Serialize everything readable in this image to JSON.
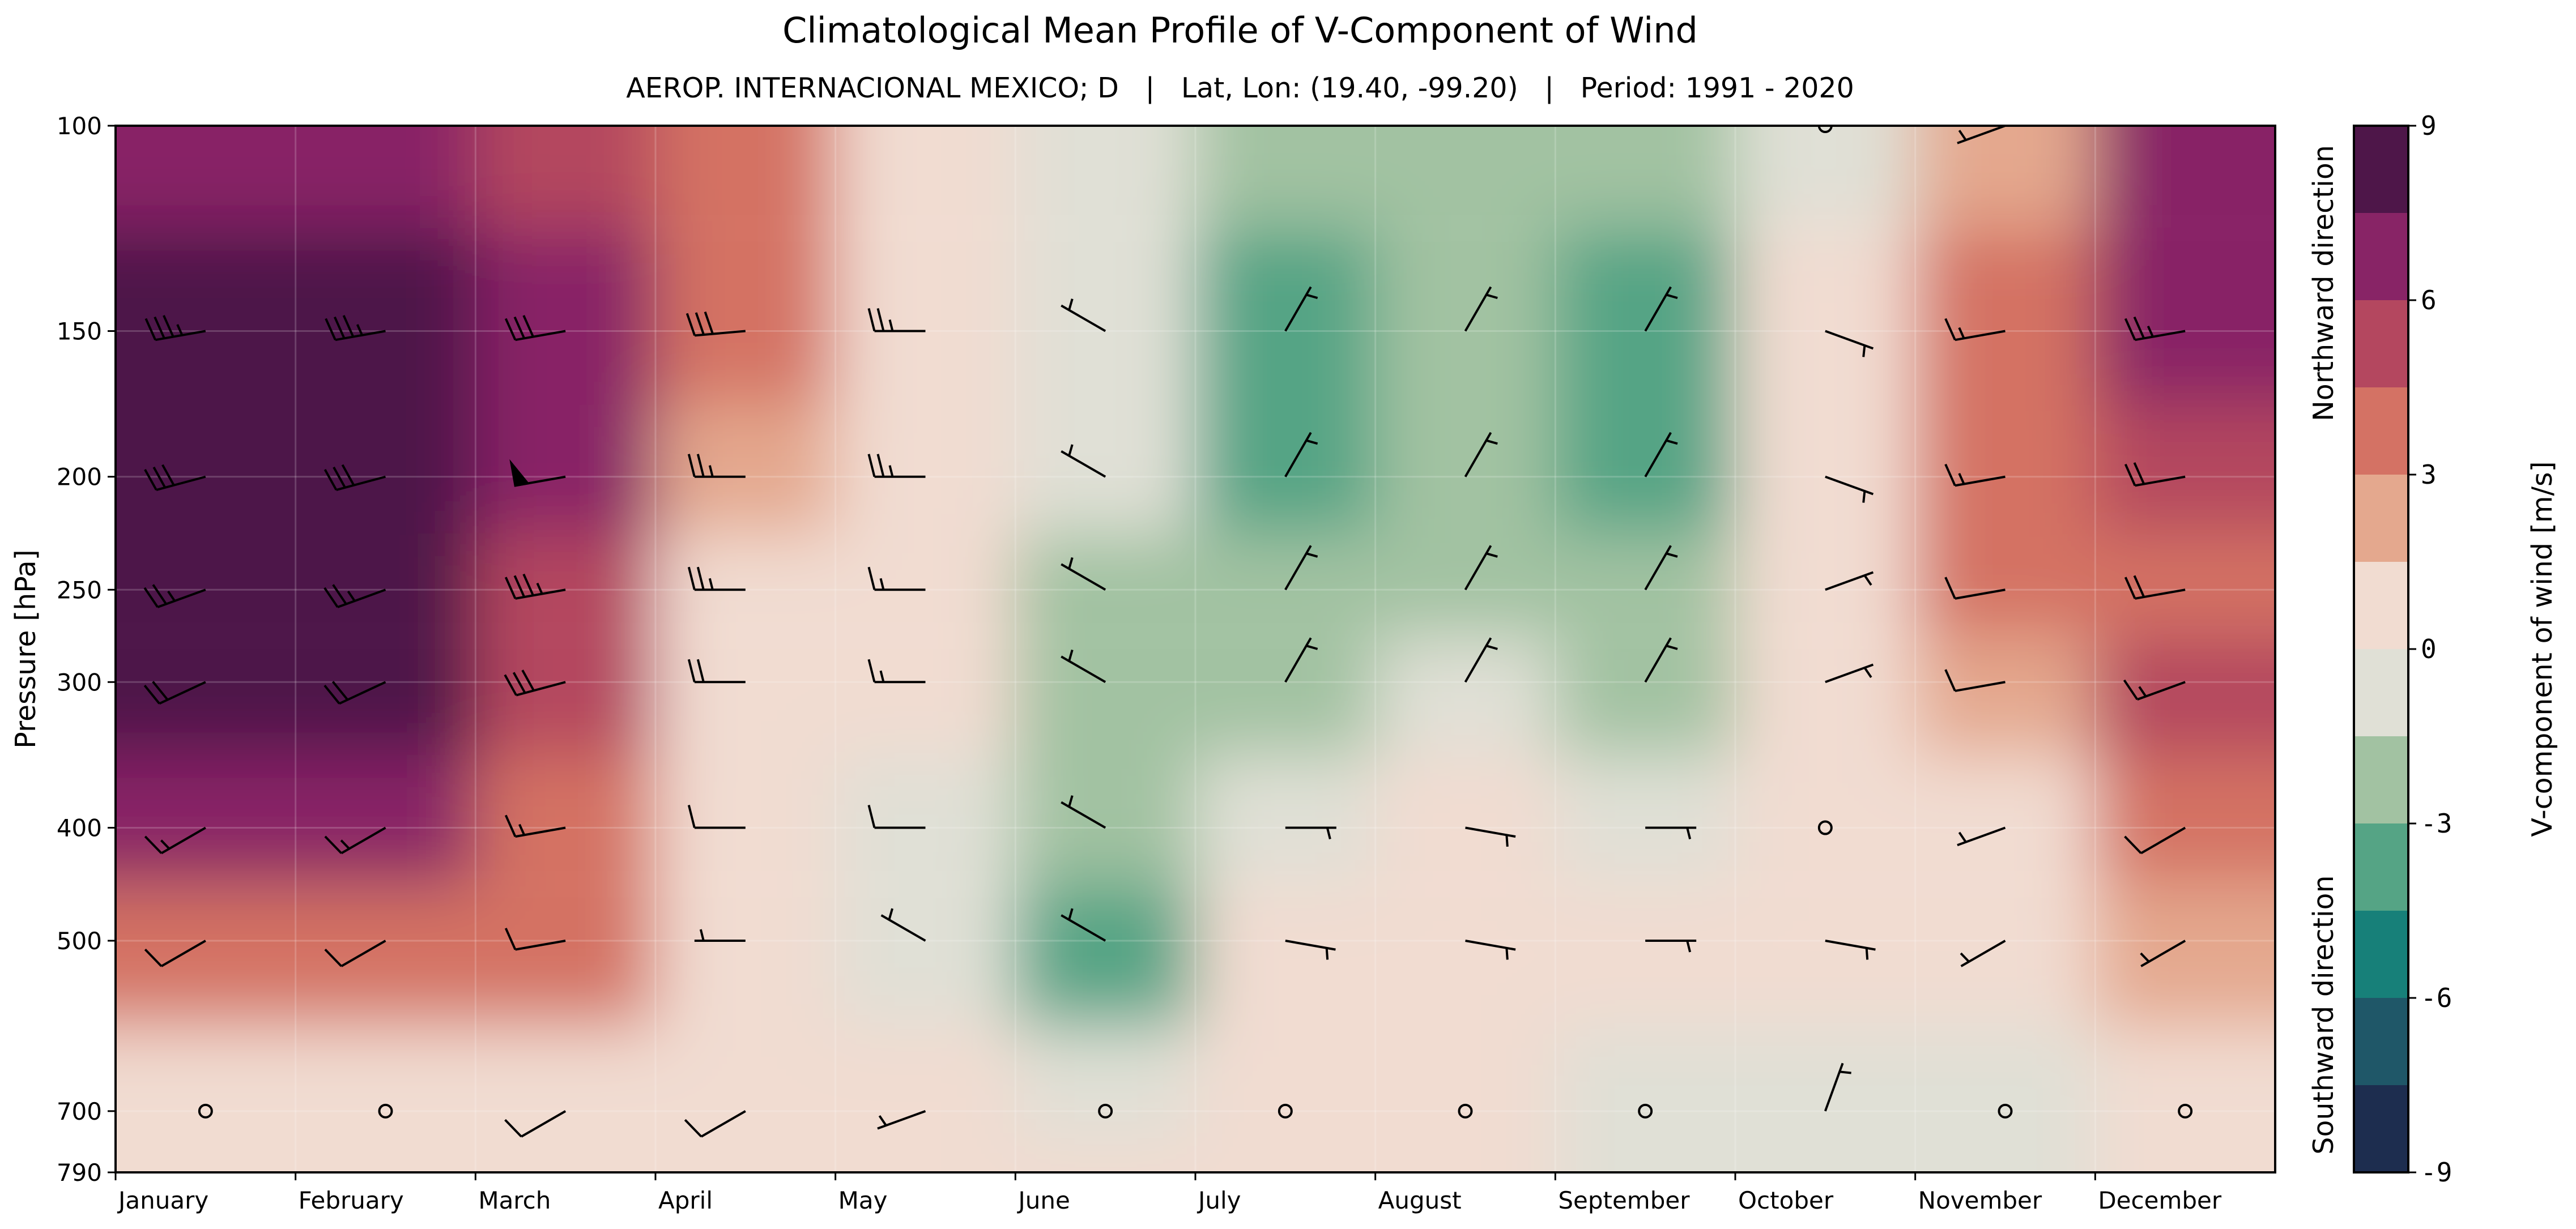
{
  "chart_data": {
    "type": "heatmap",
    "title": "Climatological Mean Profile of V-Component of Wind",
    "subtitle": "AEROP. INTERNACIONAL MEXICO; D   |   Lat, Lon: (19.40, -99.20)   |   Period: 1991 - 2020",
    "xlabel": "",
    "ylabel": "Pressure [hPa]",
    "x_categories": [
      "January",
      "February",
      "March",
      "April",
      "May",
      "June",
      "July",
      "August",
      "September",
      "October",
      "November",
      "December"
    ],
    "y_levels": [
      100,
      150,
      200,
      250,
      300,
      400,
      500,
      700,
      790
    ],
    "y_tick_labels": [
      "100",
      "150",
      "200",
      "250",
      "300",
      "400",
      "500",
      "700",
      "790"
    ],
    "y_scale": "log",
    "ylim": [
      790,
      100
    ],
    "colorbar": {
      "label": "V-component of wind [m/s]",
      "ticks": [
        9,
        6,
        3,
        0,
        -3,
        -6,
        -9
      ],
      "tick_labels": [
        "9",
        "6",
        "3",
        "0",
        "-3",
        "-6",
        "-9"
      ],
      "top_annotation": "Northward direction",
      "bottom_annotation": "Southward direction",
      "levels": [
        -9,
        -7.5,
        -6,
        -4.5,
        -3,
        -1.5,
        0,
        1.5,
        3,
        4.5,
        6,
        7.5,
        9
      ],
      "colors": [
        "#1d2d4f",
        "#1f5768",
        "#178079",
        "#55a485",
        "#a2c2a2",
        "#e0e0d6",
        "#f1dcd1",
        "#e4a88e",
        "#d47264",
        "#b4475f",
        "#882466",
        "#4e1649"
      ]
    },
    "v_wind": [
      [
        6.5,
        8.3,
        9.0,
        9.0,
        8.0,
        6.0,
        4.0,
        1.0,
        0.5
      ],
      [
        6.5,
        8.0,
        9.0,
        8.5,
        7.5,
        6.0,
        4.0,
        1.0,
        0.5
      ],
      [
        5.0,
        6.0,
        6.0,
        5.5,
        5.0,
        4.0,
        3.0,
        0.5,
        0.5
      ],
      [
        3.5,
        3.5,
        2.0,
        1.0,
        1.0,
        0.5,
        0.5,
        0.5,
        0.5
      ],
      [
        1.0,
        0.5,
        0.5,
        0.5,
        0.5,
        -0.5,
        -1.0,
        0.5,
        0.5
      ],
      [
        -0.5,
        -1.0,
        -1.0,
        -2.0,
        -2.5,
        -3.0,
        -3.5,
        -0.5,
        0.5
      ],
      [
        -2.0,
        -3.5,
        -4.5,
        -3.0,
        -2.0,
        -0.5,
        0.5,
        0.5,
        0.5
      ],
      [
        -2.0,
        -3.0,
        -2.5,
        -2.0,
        -0.5,
        0.0,
        0.5,
        0.5,
        0.5
      ],
      [
        -2.0,
        -3.5,
        -4.5,
        -3.0,
        -2.0,
        -0.5,
        0.5,
        -0.5,
        -0.5
      ],
      [
        -0.5,
        0.5,
        0.5,
        0.5,
        0.5,
        0.5,
        0.5,
        -1.0,
        -0.5
      ],
      [
        2.5,
        3.5,
        3.5,
        3.0,
        2.5,
        1.0,
        1.0,
        -0.5,
        -0.5
      ],
      [
        6.0,
        6.5,
        4.5,
        4.0,
        4.5,
        3.5,
        2.5,
        0.5,
        0.5
      ]
    ],
    "wind_barbs": {
      "levels": [
        100,
        150,
        200,
        250,
        300,
        400,
        500,
        700
      ],
      "barbs": [
        [
          {
            "ws": 30,
            "dir": 270
          },
          {
            "ws": 35,
            "dir": 260
          },
          {
            "ws": 30,
            "dir": 255
          },
          {
            "ws": 25,
            "dir": 250
          },
          {
            "ws": 20,
            "dir": 245
          },
          {
            "ws": 15,
            "dir": 240
          },
          {
            "ws": 10,
            "dir": 240
          },
          {
            "ws": 0,
            "dir": 0
          }
        ],
        [
          {
            "ws": 30,
            "dir": 270
          },
          {
            "ws": 35,
            "dir": 260
          },
          {
            "ws": 30,
            "dir": 255
          },
          {
            "ws": 25,
            "dir": 250
          },
          {
            "ws": 20,
            "dir": 245
          },
          {
            "ws": 15,
            "dir": 240
          },
          {
            "ws": 10,
            "dir": 240
          },
          {
            "ws": 0,
            "dir": 0
          }
        ],
        [
          {
            "ws": 30,
            "dir": 270
          },
          {
            "ws": 30,
            "dir": 260
          },
          {
            "ws": 50,
            "dir": 260
          },
          {
            "ws": 35,
            "dir": 260
          },
          {
            "ws": 30,
            "dir": 255
          },
          {
            "ws": 15,
            "dir": 260
          },
          {
            "ws": 10,
            "dir": 260
          },
          {
            "ws": 10,
            "dir": 240
          }
        ],
        [
          {
            "ws": 20,
            "dir": 270
          },
          {
            "ws": 30,
            "dir": 265
          },
          {
            "ws": 25,
            "dir": 270
          },
          {
            "ws": 25,
            "dir": 270
          },
          {
            "ws": 20,
            "dir": 270
          },
          {
            "ws": 10,
            "dir": 270
          },
          {
            "ws": 5,
            "dir": 270
          },
          {
            "ws": 10,
            "dir": 240
          }
        ],
        [
          {
            "ws": 15,
            "dir": 270
          },
          {
            "ws": 25,
            "dir": 270
          },
          {
            "ws": 25,
            "dir": 270
          },
          {
            "ws": 15,
            "dir": 270
          },
          {
            "ws": 15,
            "dir": 270
          },
          {
            "ws": 10,
            "dir": 270
          },
          {
            "ws": 5,
            "dir": 300
          },
          {
            "ws": 5,
            "dir": 250
          }
        ],
        [
          {
            "ws": 5,
            "dir": 300
          },
          {
            "ws": 5,
            "dir": 300
          },
          {
            "ws": 5,
            "dir": 300
          },
          {
            "ws": 5,
            "dir": 300
          },
          {
            "ws": 5,
            "dir": 300
          },
          {
            "ws": 5,
            "dir": 300
          },
          {
            "ws": 5,
            "dir": 300
          },
          {
            "ws": 0,
            "dir": 0
          }
        ],
        [
          {
            "ws": 5,
            "dir": 300
          },
          {
            "ws": 5,
            "dir": 30
          },
          {
            "ws": 5,
            "dir": 30
          },
          {
            "ws": 5,
            "dir": 30
          },
          {
            "ws": 5,
            "dir": 30
          },
          {
            "ws": 5,
            "dir": 90
          },
          {
            "ws": 5,
            "dir": 100
          },
          {
            "ws": 0,
            "dir": 0
          }
        ],
        [
          {
            "ws": 5,
            "dir": 300
          },
          {
            "ws": 5,
            "dir": 30
          },
          {
            "ws": 5,
            "dir": 30
          },
          {
            "ws": 5,
            "dir": 30
          },
          {
            "ws": 5,
            "dir": 30
          },
          {
            "ws": 5,
            "dir": 100
          },
          {
            "ws": 5,
            "dir": 100
          },
          {
            "ws": 0,
            "dir": 0
          }
        ],
        [
          {
            "ws": 5,
            "dir": 300
          },
          {
            "ws": 5,
            "dir": 30
          },
          {
            "ws": 5,
            "dir": 30
          },
          {
            "ws": 5,
            "dir": 30
          },
          {
            "ws": 5,
            "dir": 30
          },
          {
            "ws": 5,
            "dir": 90
          },
          {
            "ws": 5,
            "dir": 90
          },
          {
            "ws": 0,
            "dir": 0
          }
        ],
        [
          {
            "ws": 0,
            "dir": 0
          },
          {
            "ws": 5,
            "dir": 110
          },
          {
            "ws": 5,
            "dir": 110
          },
          {
            "ws": 5,
            "dir": 70
          },
          {
            "ws": 5,
            "dir": 70
          },
          {
            "ws": 0,
            "dir": 0
          },
          {
            "ws": 5,
            "dir": 100
          },
          {
            "ws": 5,
            "dir": 20
          }
        ],
        [
          {
            "ws": 5,
            "dir": 250
          },
          {
            "ws": 15,
            "dir": 260
          },
          {
            "ws": 15,
            "dir": 260
          },
          {
            "ws": 10,
            "dir": 260
          },
          {
            "ws": 10,
            "dir": 260
          },
          {
            "ws": 5,
            "dir": 250
          },
          {
            "ws": 5,
            "dir": 240
          },
          {
            "ws": 0,
            "dir": 0
          }
        ],
        [
          {
            "ws": 20,
            "dir": 270
          },
          {
            "ws": 25,
            "dir": 260
          },
          {
            "ws": 20,
            "dir": 260
          },
          {
            "ws": 20,
            "dir": 260
          },
          {
            "ws": 15,
            "dir": 250
          },
          {
            "ws": 10,
            "dir": 240
          },
          {
            "ws": 5,
            "dir": 240
          },
          {
            "ws": 0,
            "dir": 0
          }
        ]
      ]
    },
    "grid": true,
    "legend": "none"
  }
}
